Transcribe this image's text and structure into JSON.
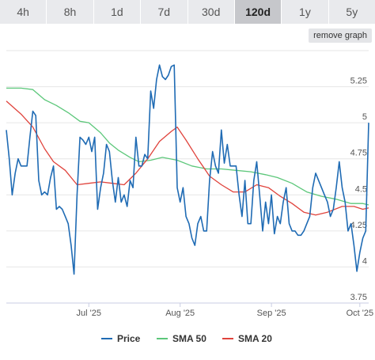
{
  "tabs": [
    {
      "label": "4h"
    },
    {
      "label": "8h"
    },
    {
      "label": "1d"
    },
    {
      "label": "7d"
    },
    {
      "label": "30d"
    },
    {
      "label": "120d",
      "active": true
    },
    {
      "label": "1y"
    },
    {
      "label": "5y"
    }
  ],
  "remove_graph_label": "remove graph",
  "chart_data": {
    "type": "line",
    "title": "",
    "xlabel": "",
    "ylabel": "",
    "ylim": [
      3.75,
      5.5
    ],
    "yticks": [
      3.75,
      4,
      4.25,
      4.5,
      4.75,
      5,
      5.25
    ],
    "ytick_labels": [
      "3.75",
      "4",
      "4.25",
      "4.5",
      "4.75",
      "5",
      "5.25"
    ],
    "xlim": [
      "2025-06-03",
      "2025-10-04"
    ],
    "xticks": [
      "2025-07-01",
      "2025-08-01",
      "2025-09-01",
      "2025-10-01"
    ],
    "xtick_labels": [
      "Jul '25",
      "Aug '25",
      "Sep '25",
      "Oct '25"
    ],
    "grid": true,
    "legend_position": "bottom",
    "series": [
      {
        "name": "Price",
        "color": "#1f6bb4",
        "points": [
          [
            "2025-06-03",
            4.95
          ],
          [
            "2025-06-04",
            4.75
          ],
          [
            "2025-06-05",
            4.5
          ],
          [
            "2025-06-06",
            4.65
          ],
          [
            "2025-06-07",
            4.75
          ],
          [
            "2025-06-08",
            4.7
          ],
          [
            "2025-06-10",
            4.7
          ],
          [
            "2025-06-11",
            4.9
          ],
          [
            "2025-06-12",
            5.08
          ],
          [
            "2025-06-13",
            5.05
          ],
          [
            "2025-06-14",
            4.6
          ],
          [
            "2025-06-15",
            4.5
          ],
          [
            "2025-06-16",
            4.52
          ],
          [
            "2025-06-17",
            4.5
          ],
          [
            "2025-06-18",
            4.62
          ],
          [
            "2025-06-19",
            4.7
          ],
          [
            "2025-06-20",
            4.4
          ],
          [
            "2025-06-21",
            4.42
          ],
          [
            "2025-06-22",
            4.4
          ],
          [
            "2025-06-23",
            4.35
          ],
          [
            "2025-06-24",
            4.3
          ],
          [
            "2025-06-25",
            4.15
          ],
          [
            "2025-06-26",
            3.95
          ],
          [
            "2025-06-27",
            4.5
          ],
          [
            "2025-06-28",
            4.9
          ],
          [
            "2025-06-29",
            4.88
          ],
          [
            "2025-06-30",
            4.85
          ],
          [
            "2025-07-01",
            4.9
          ],
          [
            "2025-07-02",
            4.8
          ],
          [
            "2025-07-03",
            4.9
          ],
          [
            "2025-07-04",
            4.4
          ],
          [
            "2025-07-05",
            4.55
          ],
          [
            "2025-07-06",
            4.65
          ],
          [
            "2025-07-07",
            4.85
          ],
          [
            "2025-07-08",
            4.8
          ],
          [
            "2025-07-09",
            4.6
          ],
          [
            "2025-07-10",
            4.45
          ],
          [
            "2025-07-11",
            4.62
          ],
          [
            "2025-07-12",
            4.45
          ],
          [
            "2025-07-13",
            4.5
          ],
          [
            "2025-07-14",
            4.42
          ],
          [
            "2025-07-15",
            4.6
          ],
          [
            "2025-07-16",
            4.55
          ],
          [
            "2025-07-17",
            4.9
          ],
          [
            "2025-07-18",
            4.7
          ],
          [
            "2025-07-19",
            4.7
          ],
          [
            "2025-07-20",
            4.78
          ],
          [
            "2025-07-21",
            4.75
          ],
          [
            "2025-07-22",
            5.22
          ],
          [
            "2025-07-23",
            5.1
          ],
          [
            "2025-07-24",
            5.3
          ],
          [
            "2025-07-25",
            5.4
          ],
          [
            "2025-07-26",
            5.32
          ],
          [
            "2025-07-27",
            5.3
          ],
          [
            "2025-07-28",
            5.33
          ],
          [
            "2025-07-29",
            5.39
          ],
          [
            "2025-07-30",
            5.4
          ],
          [
            "2025-07-31",
            4.55
          ],
          [
            "2025-08-01",
            4.45
          ],
          [
            "2025-08-02",
            4.55
          ],
          [
            "2025-08-03",
            4.35
          ],
          [
            "2025-08-04",
            4.3
          ],
          [
            "2025-08-05",
            4.2
          ],
          [
            "2025-08-06",
            4.15
          ],
          [
            "2025-08-07",
            4.3
          ],
          [
            "2025-08-08",
            4.35
          ],
          [
            "2025-08-09",
            4.25
          ],
          [
            "2025-08-10",
            4.25
          ],
          [
            "2025-08-11",
            4.6
          ],
          [
            "2025-08-12",
            4.8
          ],
          [
            "2025-08-13",
            4.7
          ],
          [
            "2025-08-14",
            4.65
          ],
          [
            "2025-08-15",
            4.95
          ],
          [
            "2025-08-16",
            4.72
          ],
          [
            "2025-08-17",
            4.85
          ],
          [
            "2025-08-18",
            4.7
          ],
          [
            "2025-08-19",
            4.7
          ],
          [
            "2025-08-20",
            4.7
          ],
          [
            "2025-08-21",
            4.5
          ],
          [
            "2025-08-22",
            4.35
          ],
          [
            "2025-08-23",
            4.6
          ],
          [
            "2025-08-24",
            4.3
          ],
          [
            "2025-08-25",
            4.3
          ],
          [
            "2025-08-26",
            4.6
          ],
          [
            "2025-08-27",
            4.73
          ],
          [
            "2025-08-28",
            4.5
          ],
          [
            "2025-08-29",
            4.25
          ],
          [
            "2025-08-30",
            4.45
          ],
          [
            "2025-08-31",
            4.3
          ],
          [
            "2025-09-01",
            4.5
          ],
          [
            "2025-09-02",
            4.23
          ],
          [
            "2025-09-03",
            4.35
          ],
          [
            "2025-09-04",
            4.3
          ],
          [
            "2025-09-05",
            4.45
          ],
          [
            "2025-09-06",
            4.55
          ],
          [
            "2025-09-07",
            4.3
          ],
          [
            "2025-09-08",
            4.25
          ],
          [
            "2025-09-09",
            4.25
          ],
          [
            "2025-09-10",
            4.22
          ],
          [
            "2025-09-11",
            4.22
          ],
          [
            "2025-09-12",
            4.25
          ],
          [
            "2025-09-13",
            4.3
          ],
          [
            "2025-09-14",
            4.35
          ],
          [
            "2025-09-15",
            4.55
          ],
          [
            "2025-09-16",
            4.65
          ],
          [
            "2025-09-17",
            4.6
          ],
          [
            "2025-09-18",
            4.55
          ],
          [
            "2025-09-19",
            4.5
          ],
          [
            "2025-09-20",
            4.45
          ],
          [
            "2025-09-21",
            4.35
          ],
          [
            "2025-09-22",
            4.4
          ],
          [
            "2025-09-23",
            4.55
          ],
          [
            "2025-09-24",
            4.73
          ],
          [
            "2025-09-25",
            4.55
          ],
          [
            "2025-09-26",
            4.45
          ],
          [
            "2025-09-27",
            4.25
          ],
          [
            "2025-09-28",
            4.3
          ],
          [
            "2025-09-29",
            4.15
          ],
          [
            "2025-09-30",
            3.97
          ],
          [
            "2025-10-01",
            4.1
          ],
          [
            "2025-10-02",
            4.2
          ],
          [
            "2025-10-03",
            4.25
          ],
          [
            "2025-10-04",
            5.0
          ]
        ]
      },
      {
        "name": "SMA 50",
        "color": "#5cc77a",
        "points": [
          [
            "2025-06-03",
            5.24
          ],
          [
            "2025-06-08",
            5.24
          ],
          [
            "2025-06-12",
            5.23
          ],
          [
            "2025-06-16",
            5.16
          ],
          [
            "2025-06-20",
            5.12
          ],
          [
            "2025-06-24",
            5.07
          ],
          [
            "2025-06-28",
            5.01
          ],
          [
            "2025-07-01",
            5.0
          ],
          [
            "2025-07-05",
            4.93
          ],
          [
            "2025-07-08",
            4.86
          ],
          [
            "2025-07-11",
            4.81
          ],
          [
            "2025-07-15",
            4.76
          ],
          [
            "2025-07-18",
            4.73
          ],
          [
            "2025-07-22",
            4.74
          ],
          [
            "2025-07-26",
            4.76
          ],
          [
            "2025-07-31",
            4.74
          ],
          [
            "2025-08-05",
            4.7
          ],
          [
            "2025-08-10",
            4.68
          ],
          [
            "2025-08-15",
            4.68
          ],
          [
            "2025-08-20",
            4.67
          ],
          [
            "2025-08-25",
            4.66
          ],
          [
            "2025-08-30",
            4.64
          ],
          [
            "2025-09-03",
            4.62
          ],
          [
            "2025-09-08",
            4.58
          ],
          [
            "2025-09-13",
            4.52
          ],
          [
            "2025-09-18",
            4.49
          ],
          [
            "2025-09-23",
            4.47
          ],
          [
            "2025-09-28",
            4.44
          ],
          [
            "2025-10-02",
            4.44
          ],
          [
            "2025-10-04",
            4.43
          ]
        ]
      },
      {
        "name": "SMA 20",
        "color": "#e0433c",
        "points": [
          [
            "2025-06-03",
            5.15
          ],
          [
            "2025-06-08",
            5.06
          ],
          [
            "2025-06-12",
            4.97
          ],
          [
            "2025-06-16",
            4.82
          ],
          [
            "2025-06-19",
            4.73
          ],
          [
            "2025-06-23",
            4.67
          ],
          [
            "2025-06-27",
            4.57
          ],
          [
            "2025-07-01",
            4.58
          ],
          [
            "2025-07-05",
            4.59
          ],
          [
            "2025-07-09",
            4.58
          ],
          [
            "2025-07-13",
            4.57
          ],
          [
            "2025-07-17",
            4.65
          ],
          [
            "2025-07-21",
            4.75
          ],
          [
            "2025-07-25",
            4.87
          ],
          [
            "2025-07-29",
            4.94
          ],
          [
            "2025-07-31",
            4.97
          ],
          [
            "2025-08-03",
            4.88
          ],
          [
            "2025-08-07",
            4.75
          ],
          [
            "2025-08-11",
            4.63
          ],
          [
            "2025-08-15",
            4.57
          ],
          [
            "2025-08-19",
            4.52
          ],
          [
            "2025-08-23",
            4.52
          ],
          [
            "2025-08-27",
            4.57
          ],
          [
            "2025-08-31",
            4.55
          ],
          [
            "2025-09-04",
            4.49
          ],
          [
            "2025-09-08",
            4.44
          ],
          [
            "2025-09-12",
            4.38
          ],
          [
            "2025-09-16",
            4.36
          ],
          [
            "2025-09-20",
            4.38
          ],
          [
            "2025-09-25",
            4.42
          ],
          [
            "2025-09-29",
            4.42
          ],
          [
            "2025-10-02",
            4.4
          ],
          [
            "2025-10-04",
            4.41
          ]
        ]
      }
    ]
  }
}
